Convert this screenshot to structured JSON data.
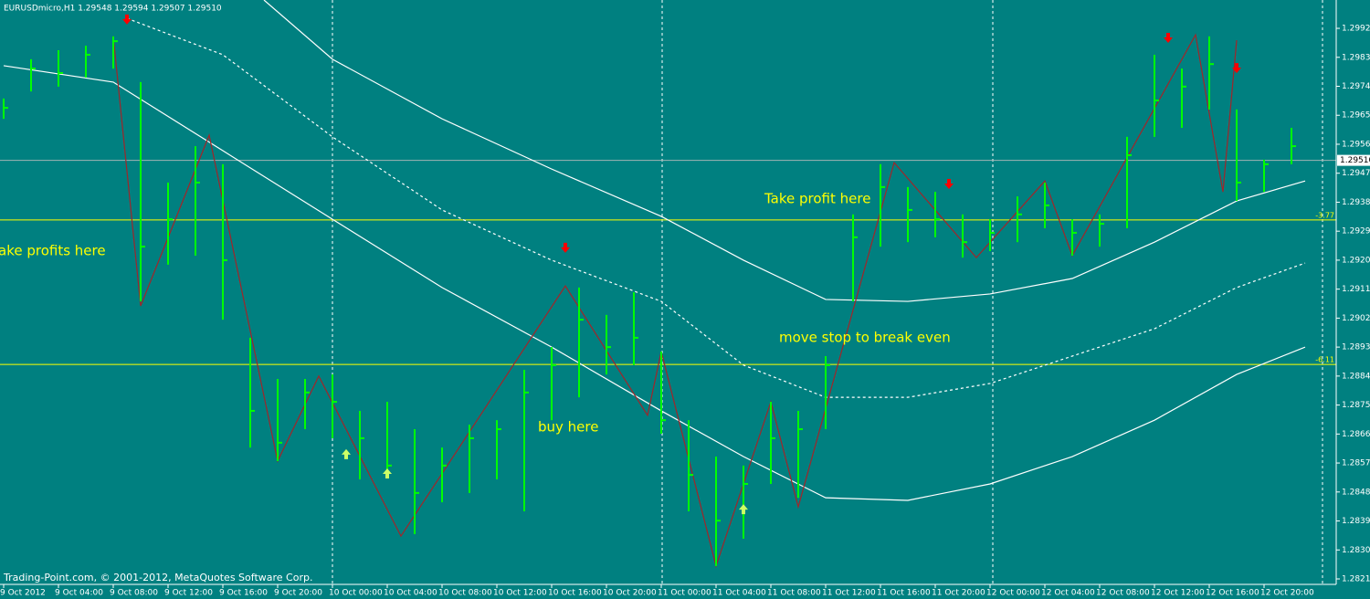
{
  "header": "EURUSDmicro,H1  1.29548 1.29594 1.29507 1.29510",
  "footer": "Trading-Point.com, © 2001-2012, MetaQuotes Software Corp.",
  "chart_data": {
    "type": "ohlc",
    "categories": [
      "9 Oct 2012",
      null,
      "9 Oct 04:00",
      null,
      "9 Oct 08:00",
      null,
      "9 Oct 12:00",
      null,
      "9 Oct 16:00",
      null,
      "9 Oct 20:00",
      null,
      "10 Oct 00:00",
      null,
      "10 Oct 04:00",
      null,
      "10 Oct 08:00",
      null,
      "10 Oct 12:00",
      null,
      "10 Oct 16:00",
      null,
      "10 Oct 20:00",
      null,
      "11 Oct 00:00",
      null,
      "11 Oct 04:00",
      null,
      "11 Oct 08:00",
      null,
      "11 Oct 12:00",
      null,
      "11 Oct 16:00",
      null,
      "11 Oct 20:00",
      null,
      "12 Oct 00:00",
      null,
      "12 Oct 04:00",
      null,
      "12 Oct 08:00",
      null,
      "12 Oct 12:00",
      null,
      "12 Oct 16:00",
      null,
      "12 Oct 20:00",
      null
    ],
    "high": [
      1.29702,
      1.29824,
      1.29852,
      1.29866,
      1.29895,
      1.29753,
      1.29441,
      1.29554,
      1.29498,
      1.28959,
      1.28831,
      1.28831,
      1.28845,
      1.28732,
      1.2876,
      1.28675,
      1.28618,
      1.28689,
      1.28703,
      1.28859,
      1.2893,
      1.29115,
      1.2903,
      1.291,
      1.28916,
      1.28703,
      1.2859,
      1.28562,
      1.2876,
      1.28732,
      1.28902,
      1.29342,
      1.29498,
      1.29427,
      1.29412,
      1.29342,
      1.29327,
      1.29398,
      1.29441,
      1.29327,
      1.29342,
      1.29583,
      1.29838,
      1.29795,
      1.29895,
      1.29668,
      1.29512,
      1.29611
    ],
    "low": [
      1.29639,
      1.29724,
      1.29739,
      1.29767,
      1.29795,
      1.29072,
      1.29186,
      1.29214,
      1.29015,
      1.28618,
      1.28576,
      1.28675,
      1.28647,
      1.28519,
      1.28533,
      1.28349,
      1.28448,
      1.28477,
      1.28519,
      1.2842,
      1.28703,
      1.28774,
      1.28845,
      1.28874,
      1.28661,
      1.2842,
      1.2825,
      1.28335,
      1.28505,
      1.28462,
      1.28675,
      1.29072,
      1.29242,
      1.29256,
      1.29271,
      1.29208,
      1.29228,
      1.29256,
      1.29299,
      1.29214,
      1.29242,
      1.29299,
      1.29583,
      1.29611,
      1.29668,
      1.29384,
      1.29412,
      1.29498
    ],
    "close": [
      1.29673,
      1.29795,
      1.29781,
      1.29838,
      1.2988,
      1.29242,
      1.29327,
      1.29441,
      1.292,
      1.28732,
      1.28633,
      1.28789,
      1.2876,
      1.28647,
      1.28562,
      1.28477,
      1.28562,
      1.28647,
      1.28675,
      1.28789,
      1.28874,
      1.29015,
      1.2893,
      1.28959,
      1.28703,
      1.28533,
      1.28391,
      1.28505,
      1.28647,
      1.28675,
      1.28874,
      1.29271,
      1.29427,
      1.29356,
      1.29327,
      1.29256,
      1.29285,
      1.29342,
      1.2937,
      1.29285,
      1.29313,
      1.29526,
      1.29696,
      1.29739,
      1.29809,
      1.29441,
      1.29498,
      1.29554
    ],
    "color": "#00ff00",
    "ylim": [
      1.28193,
      1.30008
    ],
    "yticks": [
      {
        "value": 1.2992,
        "label": "1.29920"
      },
      {
        "value": 1.2983,
        "label": "1.29830"
      },
      {
        "value": 1.2974,
        "label": "1.29740"
      },
      {
        "value": 1.2965,
        "label": "1.29650"
      },
      {
        "value": 1.2956,
        "label": "1.29560"
      },
      {
        "value": 1.2947,
        "label": "1.29470"
      },
      {
        "value": 1.2938,
        "label": "1.29380"
      },
      {
        "value": 1.2929,
        "label": "1.29290"
      },
      {
        "value": 1.292,
        "label": "1.29200"
      },
      {
        "value": 1.2911,
        "label": "1.29110"
      },
      {
        "value": 1.2902,
        "label": "1.29020"
      },
      {
        "value": 1.2893,
        "label": "1.28930"
      },
      {
        "value": 1.2884,
        "label": "1.28840"
      },
      {
        "value": 1.2875,
        "label": "1.28750"
      },
      {
        "value": 1.2866,
        "label": "1.28660"
      },
      {
        "value": 1.2857,
        "label": "1.28570"
      },
      {
        "value": 1.2848,
        "label": "1.28480"
      },
      {
        "value": 1.2839,
        "label": "1.28390"
      },
      {
        "value": 1.283,
        "label": "1.28300"
      },
      {
        "value": 1.2821,
        "label": "1.28210"
      }
    ],
    "current_price": {
      "value": 1.2951,
      "label": "1.29510"
    },
    "levels": [
      {
        "value": 1.29325,
        "label": "-3.77"
      },
      {
        "value": 1.28876,
        "label": "-6.11"
      }
    ],
    "lines": [
      {
        "color": "#ffffff",
        "dashed": false,
        "x": [
          0,
          4,
          8,
          12,
          16,
          20,
          24,
          27,
          30,
          33,
          36,
          39,
          42,
          45,
          47.5
        ],
        "values": [
          1.29804,
          1.29753,
          1.2954,
          1.29327,
          1.29115,
          1.2893,
          1.28732,
          1.2859,
          1.28462,
          1.28454,
          1.28505,
          1.2859,
          1.28703,
          1.28845,
          1.2893
        ]
      },
      {
        "color": "#ffffff",
        "dashed": false,
        "x": [
          9.5,
          12,
          16,
          20,
          24,
          27,
          30,
          33,
          36,
          39,
          42,
          45,
          47.5
        ],
        "values": [
          1.30008,
          1.29824,
          1.29639,
          1.29483,
          1.29336,
          1.292,
          1.29078,
          1.29072,
          1.29095,
          1.29143,
          1.29256,
          1.29384,
          1.29446
        ]
      },
      {
        "color": "#ffffff",
        "dashed": true,
        "x": [
          4.5,
          8,
          12,
          16,
          20,
          24,
          27,
          30,
          33,
          36,
          39,
          42,
          45,
          47.5
        ],
        "values": [
          1.29951,
          1.29838,
          1.29583,
          1.29356,
          1.292,
          1.29072,
          1.28874,
          1.28774,
          1.28774,
          1.28817,
          1.28902,
          1.28987,
          1.29115,
          1.29191
        ]
      },
      {
        "color": "#a0262a",
        "dashed": false,
        "x": [
          4,
          5,
          7.5,
          10,
          11.5,
          14.5,
          20.5,
          23.5,
          24,
          26,
          28,
          29,
          32.5,
          35.5,
          38,
          39,
          43.5,
          44.5,
          45
        ],
        "values": [
          1.29895,
          1.29058,
          1.29588,
          1.28576,
          1.2884,
          1.28343,
          1.2912,
          1.28718,
          1.28916,
          1.2825,
          1.2876,
          1.28434,
          1.29503,
          1.29208,
          1.29446,
          1.29214,
          1.299,
          1.29412,
          1.29883
        ]
      }
    ],
    "arrows": [
      {
        "direction": "down",
        "color": "#ff0000",
        "x": 4.5,
        "value": 1.29946
      },
      {
        "direction": "down",
        "color": "#ff0000",
        "x": 20.5,
        "value": 1.29237
      },
      {
        "direction": "down",
        "color": "#ff0000",
        "x": 34.5,
        "value": 1.29435
      },
      {
        "direction": "down",
        "color": "#ff0000",
        "x": 42.5,
        "value": 1.29889
      },
      {
        "direction": "down",
        "color": "#ff0000",
        "x": 45,
        "value": 1.29795
      },
      {
        "direction": "up",
        "color": "#ccff66",
        "x": 12.5,
        "value": 1.28599
      },
      {
        "direction": "up",
        "color": "#ccff66",
        "x": 14,
        "value": 1.28539
      },
      {
        "direction": "up",
        "color": "#ccff66",
        "x": 27,
        "value": 1.28428
      }
    ],
    "annotations": [
      "ake profits here",
      "Take profit here",
      "move stop to break even",
      "buy here"
    ]
  }
}
